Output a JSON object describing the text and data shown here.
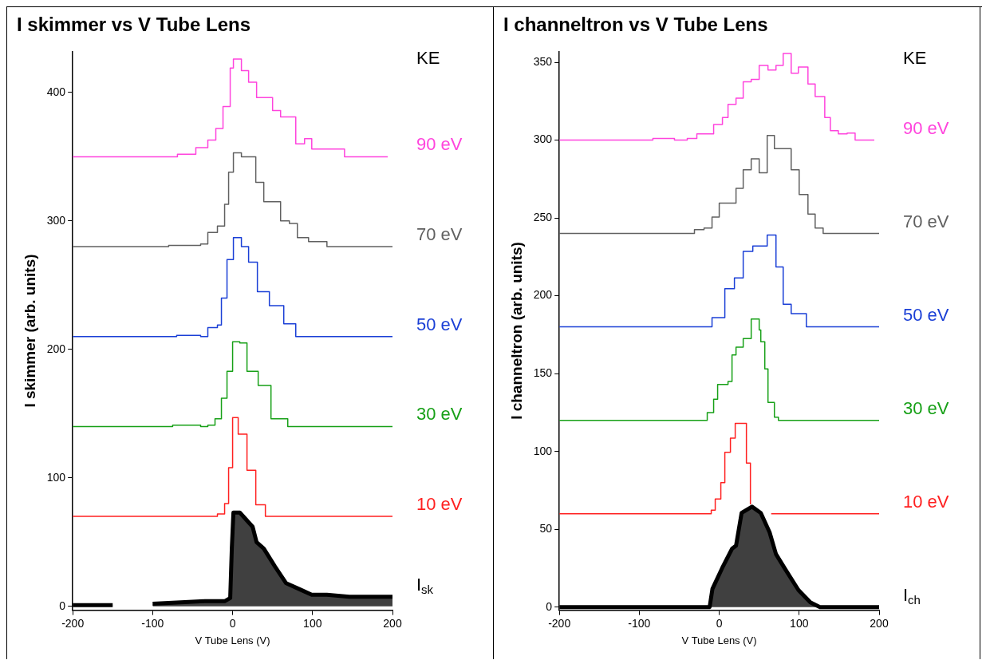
{
  "chart_data": [
    {
      "type": "step",
      "title": "I skimmer vs V Tube Lens",
      "xlabel": "V Tube Lens (V)",
      "ylabel": "I skimmer (arb. units)",
      "legend_title": "KE",
      "legend": false,
      "grid": false,
      "marker": "none",
      "line_style": "solid",
      "xlim": [
        -200,
        200
      ],
      "ylim": [
        -3,
        432
      ],
      "xticks": [
        -200,
        -100,
        0,
        100,
        200
      ],
      "yticks": [
        0,
        100,
        200,
        300,
        400
      ],
      "series": [
        {
          "name": "I$_{sk}$",
          "type": "area",
          "color": "#000000",
          "x": [
            -200,
            -150,
            -125,
            -100,
            -70,
            -35,
            -10,
            -3,
            -1,
            1,
            9,
            25,
            30,
            39,
            53,
            67,
            85,
            99,
            118,
            146,
            200
          ],
          "values": [
            1,
            1,
            null,
            2,
            3,
            4,
            4,
            6.5,
            45,
            73,
            73,
            62,
            50,
            45,
            31,
            18,
            13,
            9,
            9,
            7.5,
            7.5
          ]
        },
        {
          "name": "10 eV",
          "color": "#ff2020",
          "x": [
            -200,
            -30,
            -19,
            -10,
            -5,
            0,
            7,
            18,
            29,
            41,
            200
          ],
          "values": [
            70,
            70,
            72,
            80,
            108,
            147,
            134,
            106,
            79,
            70,
            70
          ]
        },
        {
          "name": "30 eV",
          "color": "#17a017",
          "x": [
            -200,
            -75,
            -40,
            -31,
            -22,
            -14,
            -7,
            0,
            9,
            18,
            32,
            48,
            69,
            200
          ],
          "values": [
            140,
            141,
            140,
            141,
            146,
            162,
            183,
            206,
            205,
            183,
            172,
            146,
            140,
            140
          ]
        },
        {
          "name": "50 eV",
          "color": "#1a3fd6",
          "x": [
            -200,
            -70,
            -40,
            -31,
            -19,
            -14,
            -7,
            1,
            11,
            20,
            31,
            46,
            64,
            79,
            200
          ],
          "values": [
            210,
            211,
            210,
            217,
            219,
            240,
            270,
            287,
            280,
            268,
            245,
            234,
            220,
            210,
            210
          ]
        },
        {
          "name": "70 eV",
          "color": "#606060",
          "x": [
            -200,
            -80,
            -40,
            -31,
            -19,
            -10,
            -5,
            1,
            11,
            29,
            39,
            51,
            60,
            71,
            81,
            95,
            118,
            200
          ],
          "values": [
            280,
            281,
            282,
            291,
            296,
            313,
            338,
            353,
            350,
            330,
            315,
            315,
            300,
            298,
            287,
            284,
            280,
            280
          ]
        },
        {
          "name": "90 eV",
          "color": "#ff44dd",
          "x": [
            -200,
            -79,
            -69,
            -58,
            -46,
            -31,
            -21,
            -12,
            -3,
            1,
            11,
            20,
            30,
            41,
            50,
            60,
            79,
            90,
            99,
            117,
            140,
            194
          ],
          "values": [
            350,
            350,
            352,
            352,
            357,
            363,
            372,
            389,
            419,
            426,
            417,
            408,
            396,
            396,
            386,
            381,
            360,
            364,
            356,
            356,
            350,
            350
          ]
        }
      ]
    },
    {
      "type": "step",
      "title": "I channeltron vs V Tube Lens",
      "xlabel": "V Tube Lens (V)",
      "ylabel": "I channeltron (arb. units)",
      "legend_title": "KE",
      "legend": false,
      "grid": false,
      "marker": "none",
      "line_style": "solid",
      "xlim": [
        -200,
        200
      ],
      "ylim": [
        -2,
        357
      ],
      "xticks": [
        -200,
        -100,
        0,
        100,
        200
      ],
      "yticks": [
        0,
        50,
        100,
        150,
        200,
        250,
        300,
        350
      ],
      "series": [
        {
          "name": "I$_{ch}$",
          "type": "area",
          "color": "#000000",
          "x": [
            -200,
            -12,
            -8.5,
            3.6,
            16,
            21,
            28,
            41,
            52,
            63,
            71,
            83,
            99,
            114,
            126,
            200
          ],
          "values": [
            0,
            0,
            11.7,
            25,
            37.5,
            39.4,
            60.5,
            64.5,
            60.5,
            48,
            34,
            24,
            11,
            3,
            0,
            0
          ]
        },
        {
          "name": "10 eV",
          "color": "#ff2020",
          "x": [
            -200,
            -29,
            -10,
            -5,
            2,
            7,
            14,
            20,
            31,
            34,
            39,
            40,
            65,
            200
          ],
          "values": [
            60,
            60,
            62.3,
            69.5,
            80,
            99.5,
            108.5,
            118,
            118,
            92.5,
            66,
            null,
            60,
            60
          ]
        },
        {
          "name": "30 eV",
          "color": "#17a017",
          "x": [
            -200,
            -28,
            -15,
            -7,
            -2,
            11,
            16,
            21,
            30,
            40,
            50,
            52,
            57,
            61,
            69,
            74,
            200
          ],
          "values": [
            120,
            120,
            125,
            133.5,
            143,
            145,
            162,
            167,
            172.5,
            185,
            178,
            170.5,
            153,
            131.5,
            122,
            120,
            120
          ]
        },
        {
          "name": "50 eV",
          "color": "#1a3fd6",
          "x": [
            -200,
            -29,
            -9,
            7,
            19,
            30,
            42,
            60,
            71,
            80,
            90,
            109,
            200
          ],
          "values": [
            180,
            180,
            186,
            204.5,
            211.5,
            228.5,
            232,
            239,
            218.5,
            194.5,
            188.5,
            180,
            180
          ]
        },
        {
          "name": "70 eV",
          "color": "#606060",
          "x": [
            -200,
            -40,
            -31,
            -19,
            -9,
            0,
            21,
            30,
            40,
            50,
            60,
            69,
            80,
            90,
            100,
            111,
            120,
            130,
            200
          ],
          "values": [
            240,
            240,
            242.5,
            243.5,
            250.5,
            259.5,
            269,
            281,
            288,
            279,
            303,
            294.5,
            294.5,
            281,
            265,
            252.5,
            243.5,
            240,
            240
          ]
        },
        {
          "name": "90 eV",
          "color": "#ff44dd",
          "x": [
            -200,
            -83,
            -56,
            -40,
            -28,
            -19,
            -7,
            4,
            11,
            21,
            30,
            40,
            50,
            61,
            71,
            80,
            90,
            99,
            111,
            120,
            132,
            139,
            149,
            160,
            170,
            194
          ],
          "values": [
            300,
            301,
            300,
            301,
            304,
            304,
            310,
            314.5,
            323,
            327,
            337.5,
            339,
            348,
            345,
            348,
            355.7,
            343,
            347,
            336,
            328,
            314.5,
            306,
            304,
            304.5,
            300,
            300
          ]
        }
      ]
    }
  ]
}
